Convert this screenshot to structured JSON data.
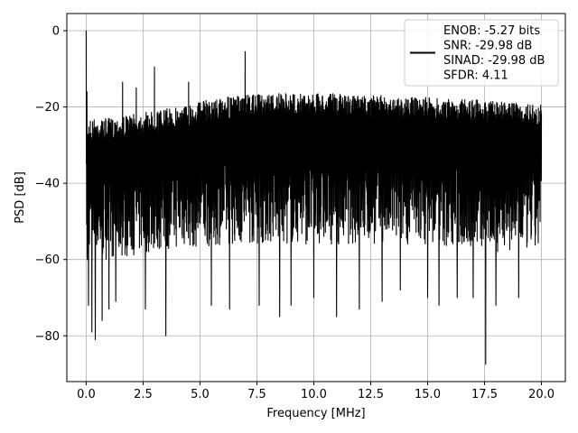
{
  "chart_data": {
    "type": "line",
    "xlabel": "Frequency [MHz]",
    "ylabel": "PSD [dB]",
    "xlim": [
      -0.85,
      21.05
    ],
    "ylim": [
      -92,
      4.5
    ],
    "xticks": [
      0.0,
      2.5,
      5.0,
      7.5,
      10.0,
      12.5,
      15.0,
      17.5,
      20.0
    ],
    "xtick_labels": [
      "0.0",
      "2.5",
      "5.0",
      "7.5",
      "10.0",
      "12.5",
      "15.0",
      "17.5",
      "20.0"
    ],
    "yticks": [
      0,
      -20,
      -40,
      -60,
      -80
    ],
    "ytick_labels": [
      "0",
      "−20",
      "−40",
      "−60",
      "−80"
    ],
    "grid": true,
    "legend_placement": "top-right",
    "series": [
      {
        "name": "ENOB: -5.27 bits\nSNR: -29.98 dB\nSINAD: -29.98 dB\nSFDR: 4.11",
        "color": "#000000",
        "description": "dense noise floor between about -60 and -17 dB from 0 to 20 MHz",
        "envelope": {
          "x": [
            0.0,
            0.2,
            0.5,
            1.0,
            2.0,
            3.0,
            4.0,
            5.0,
            6.0,
            7.0,
            8.0,
            9.0,
            10.0,
            11.0,
            12.0,
            13.0,
            14.0,
            15.0,
            16.0,
            17.0,
            18.0,
            19.0,
            20.0
          ],
          "upper": [
            -23,
            -23,
            -23,
            -23,
            -22,
            -21,
            -20,
            -18.5,
            -17.5,
            -17,
            -16.5,
            -16.5,
            -16.5,
            -16.5,
            -17,
            -17,
            -17.5,
            -17.5,
            -18,
            -18,
            -18.5,
            -19,
            -19.5
          ],
          "lower": [
            -55,
            -58,
            -60,
            -60,
            -59,
            -58,
            -57,
            -57,
            -56,
            -56,
            -56,
            -56,
            -56,
            -56,
            -56,
            -56,
            -56,
            -56,
            -57,
            -57,
            -58,
            -58,
            -58
          ]
        },
        "peaks": [
          {
            "x": 0.0,
            "y": 0.0
          },
          {
            "x": 0.03,
            "y": -16.0
          },
          {
            "x": 1.6,
            "y": -13.5
          },
          {
            "x": 2.2,
            "y": -15.0
          },
          {
            "x": 3.0,
            "y": -9.5
          },
          {
            "x": 4.5,
            "y": -13.5
          },
          {
            "x": 6.98,
            "y": -5.5
          }
        ],
        "dips": [
          {
            "x": 0.05,
            "y": -60.0
          },
          {
            "x": 0.1,
            "y": -72.0
          },
          {
            "x": 0.25,
            "y": -79.0
          },
          {
            "x": 0.4,
            "y": -81.0
          },
          {
            "x": 0.7,
            "y": -76.0
          },
          {
            "x": 1.0,
            "y": -73.0
          },
          {
            "x": 1.3,
            "y": -71.0
          },
          {
            "x": 2.2,
            "y": -78.0
          },
          {
            "x": 2.6,
            "y": -73.0
          },
          {
            "x": 3.5,
            "y": -80.0
          },
          {
            "x": 4.5,
            "y": -77.0
          },
          {
            "x": 5.5,
            "y": -72.0
          },
          {
            "x": 6.3,
            "y": -73.0
          },
          {
            "x": 7.6,
            "y": -72.0
          },
          {
            "x": 8.5,
            "y": -75.0
          },
          {
            "x": 9.0,
            "y": -72.0
          },
          {
            "x": 10.0,
            "y": -70.0
          },
          {
            "x": 11.0,
            "y": -75.0
          },
          {
            "x": 12.0,
            "y": -73.0
          },
          {
            "x": 13.0,
            "y": -71.0
          },
          {
            "x": 13.8,
            "y": -68.0
          },
          {
            "x": 15.0,
            "y": -70.0
          },
          {
            "x": 15.5,
            "y": -72.0
          },
          {
            "x": 16.3,
            "y": -70.0
          },
          {
            "x": 17.0,
            "y": -70.0
          },
          {
            "x": 17.55,
            "y": -87.5
          },
          {
            "x": 18.0,
            "y": -72.0
          },
          {
            "x": 19.0,
            "y": -70.0
          }
        ]
      }
    ],
    "legend": {
      "lines": [
        "ENOB: -5.27 bits",
        "SNR: -29.98 dB",
        "SINAD: -29.98 dB",
        "SFDR: 4.11"
      ]
    }
  }
}
